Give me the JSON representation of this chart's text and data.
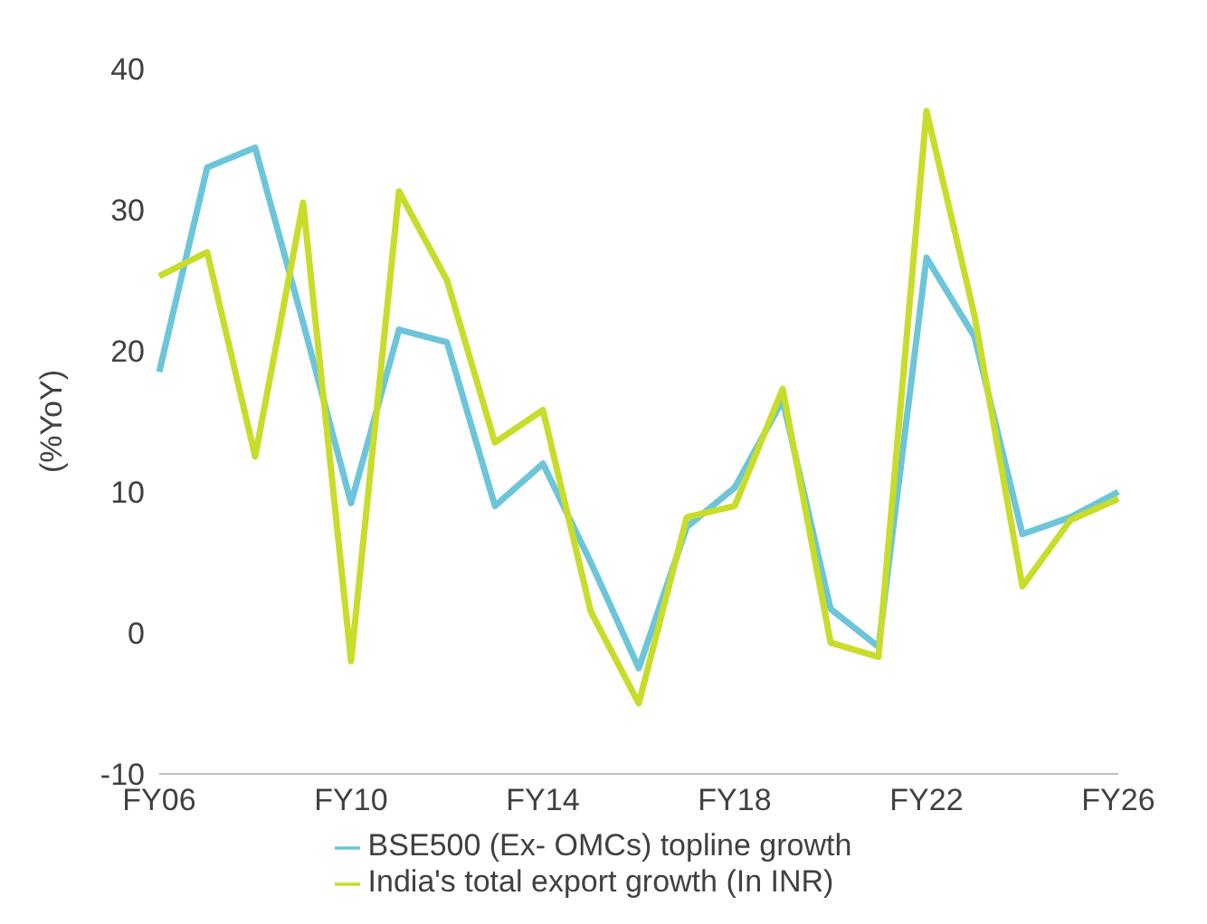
{
  "chart_data": {
    "type": "line",
    "ylabel": "(%YoY)",
    "categories": [
      "FY06",
      null,
      null,
      null,
      "FY10",
      null,
      null,
      null,
      "FY14",
      null,
      null,
      null,
      "FY18",
      null,
      null,
      null,
      "FY22",
      null,
      null,
      null,
      "FY26"
    ],
    "series": [
      {
        "name": "BSE500 (Ex- OMCs) topline growth",
        "color": "#6cc5d9",
        "values": [
          18.5,
          33,
          34.4,
          22,
          9.2,
          21.5,
          20.6,
          9,
          12,
          5,
          -2.5,
          7.5,
          10.3,
          16.5,
          1.7,
          -1,
          26.6,
          21,
          7,
          8.2,
          10
        ]
      },
      {
        "name": "India's total export growth (In INR)",
        "color": "#c8dc2a",
        "values": [
          25.3,
          27,
          12.5,
          30.5,
          -2,
          31.3,
          25,
          13.5,
          15.8,
          1.5,
          -5,
          8.2,
          9,
          17.3,
          -0.7,
          -1.7,
          37,
          22.5,
          3.3,
          8,
          9.5
        ]
      }
    ],
    "ylim": [
      -10,
      40
    ],
    "yticks": [
      -10,
      0,
      10,
      20,
      30,
      40
    ],
    "legend": "bottom",
    "marker": "none",
    "line_style": "solid"
  }
}
